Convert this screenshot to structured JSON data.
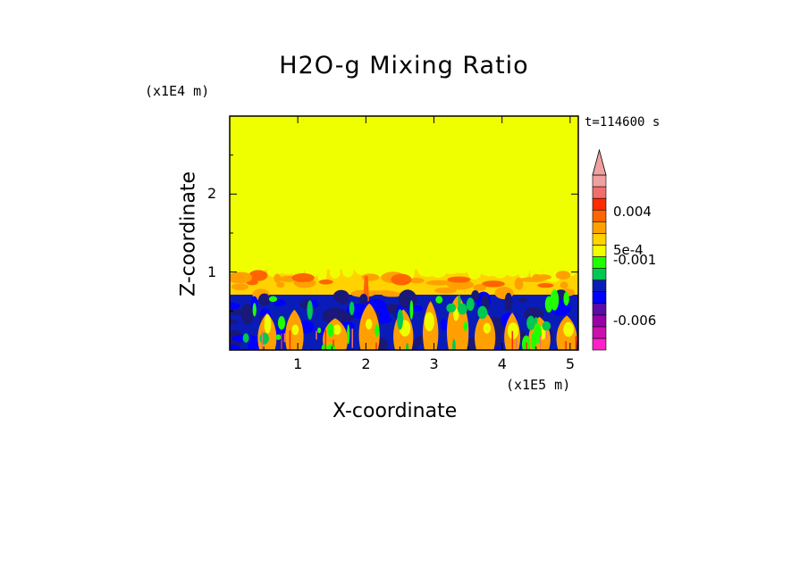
{
  "chart_data": {
    "type": "heatmap",
    "title": "H2O-g Mixing Ratio",
    "xlabel": "X-coordinate",
    "ylabel": "Z-coordinate",
    "x_multiplier": "(x1E5 m)",
    "z_multiplier": "(x1E4 m)",
    "time_label": "t=114600 s",
    "xlim": [
      0,
      5.12
    ],
    "zlim": [
      0,
      3.0
    ],
    "x_ticks": [
      {
        "value": 1,
        "label": "1"
      },
      {
        "value": 2,
        "label": "2"
      },
      {
        "value": 3,
        "label": "3"
      },
      {
        "value": 4,
        "label": "4"
      },
      {
        "value": 5,
        "label": "5"
      }
    ],
    "z_ticks": [
      {
        "value": 1,
        "label": "1"
      },
      {
        "value": 2,
        "label": "2"
      }
    ],
    "fields": {
      "background_value": "0",
      "background_color": "#f0ff00",
      "mixed_layer_top_z": 1.03,
      "boundary_layer_top_z": 0.71
    },
    "colorbar": {
      "colors": [
        "#ff20c8",
        "#cc10b0",
        "#9900a8",
        "#5a0ca8",
        "#0000ff",
        "#0a1cb8",
        "#00c850",
        "#20ff00",
        "#f0ff00",
        "#ffd200",
        "#ffa000",
        "#ff6400",
        "#ff2a00",
        "#f06e6e",
        "#f0a0a0"
      ],
      "labels": [
        {
          "text": "0.004",
          "level": 11.9
        },
        {
          "text": "5e-4",
          "level": 8.6
        },
        {
          "text": "-0.001",
          "level": 7.7
        },
        {
          "text": "-0.006",
          "level": 2.5
        }
      ]
    },
    "colors": {
      "blue_dark": "#0a1cb8",
      "blue": "#0000ff",
      "navy": "#1a1878",
      "cyan_green": "#00c850",
      "green": "#20ff00",
      "yellow": "#f0ff00",
      "gold": "#ffd200",
      "orange": "#ffa000",
      "orange_red": "#ff6400",
      "red": "#ff2a00",
      "salmon": "#f06e6e"
    }
  }
}
